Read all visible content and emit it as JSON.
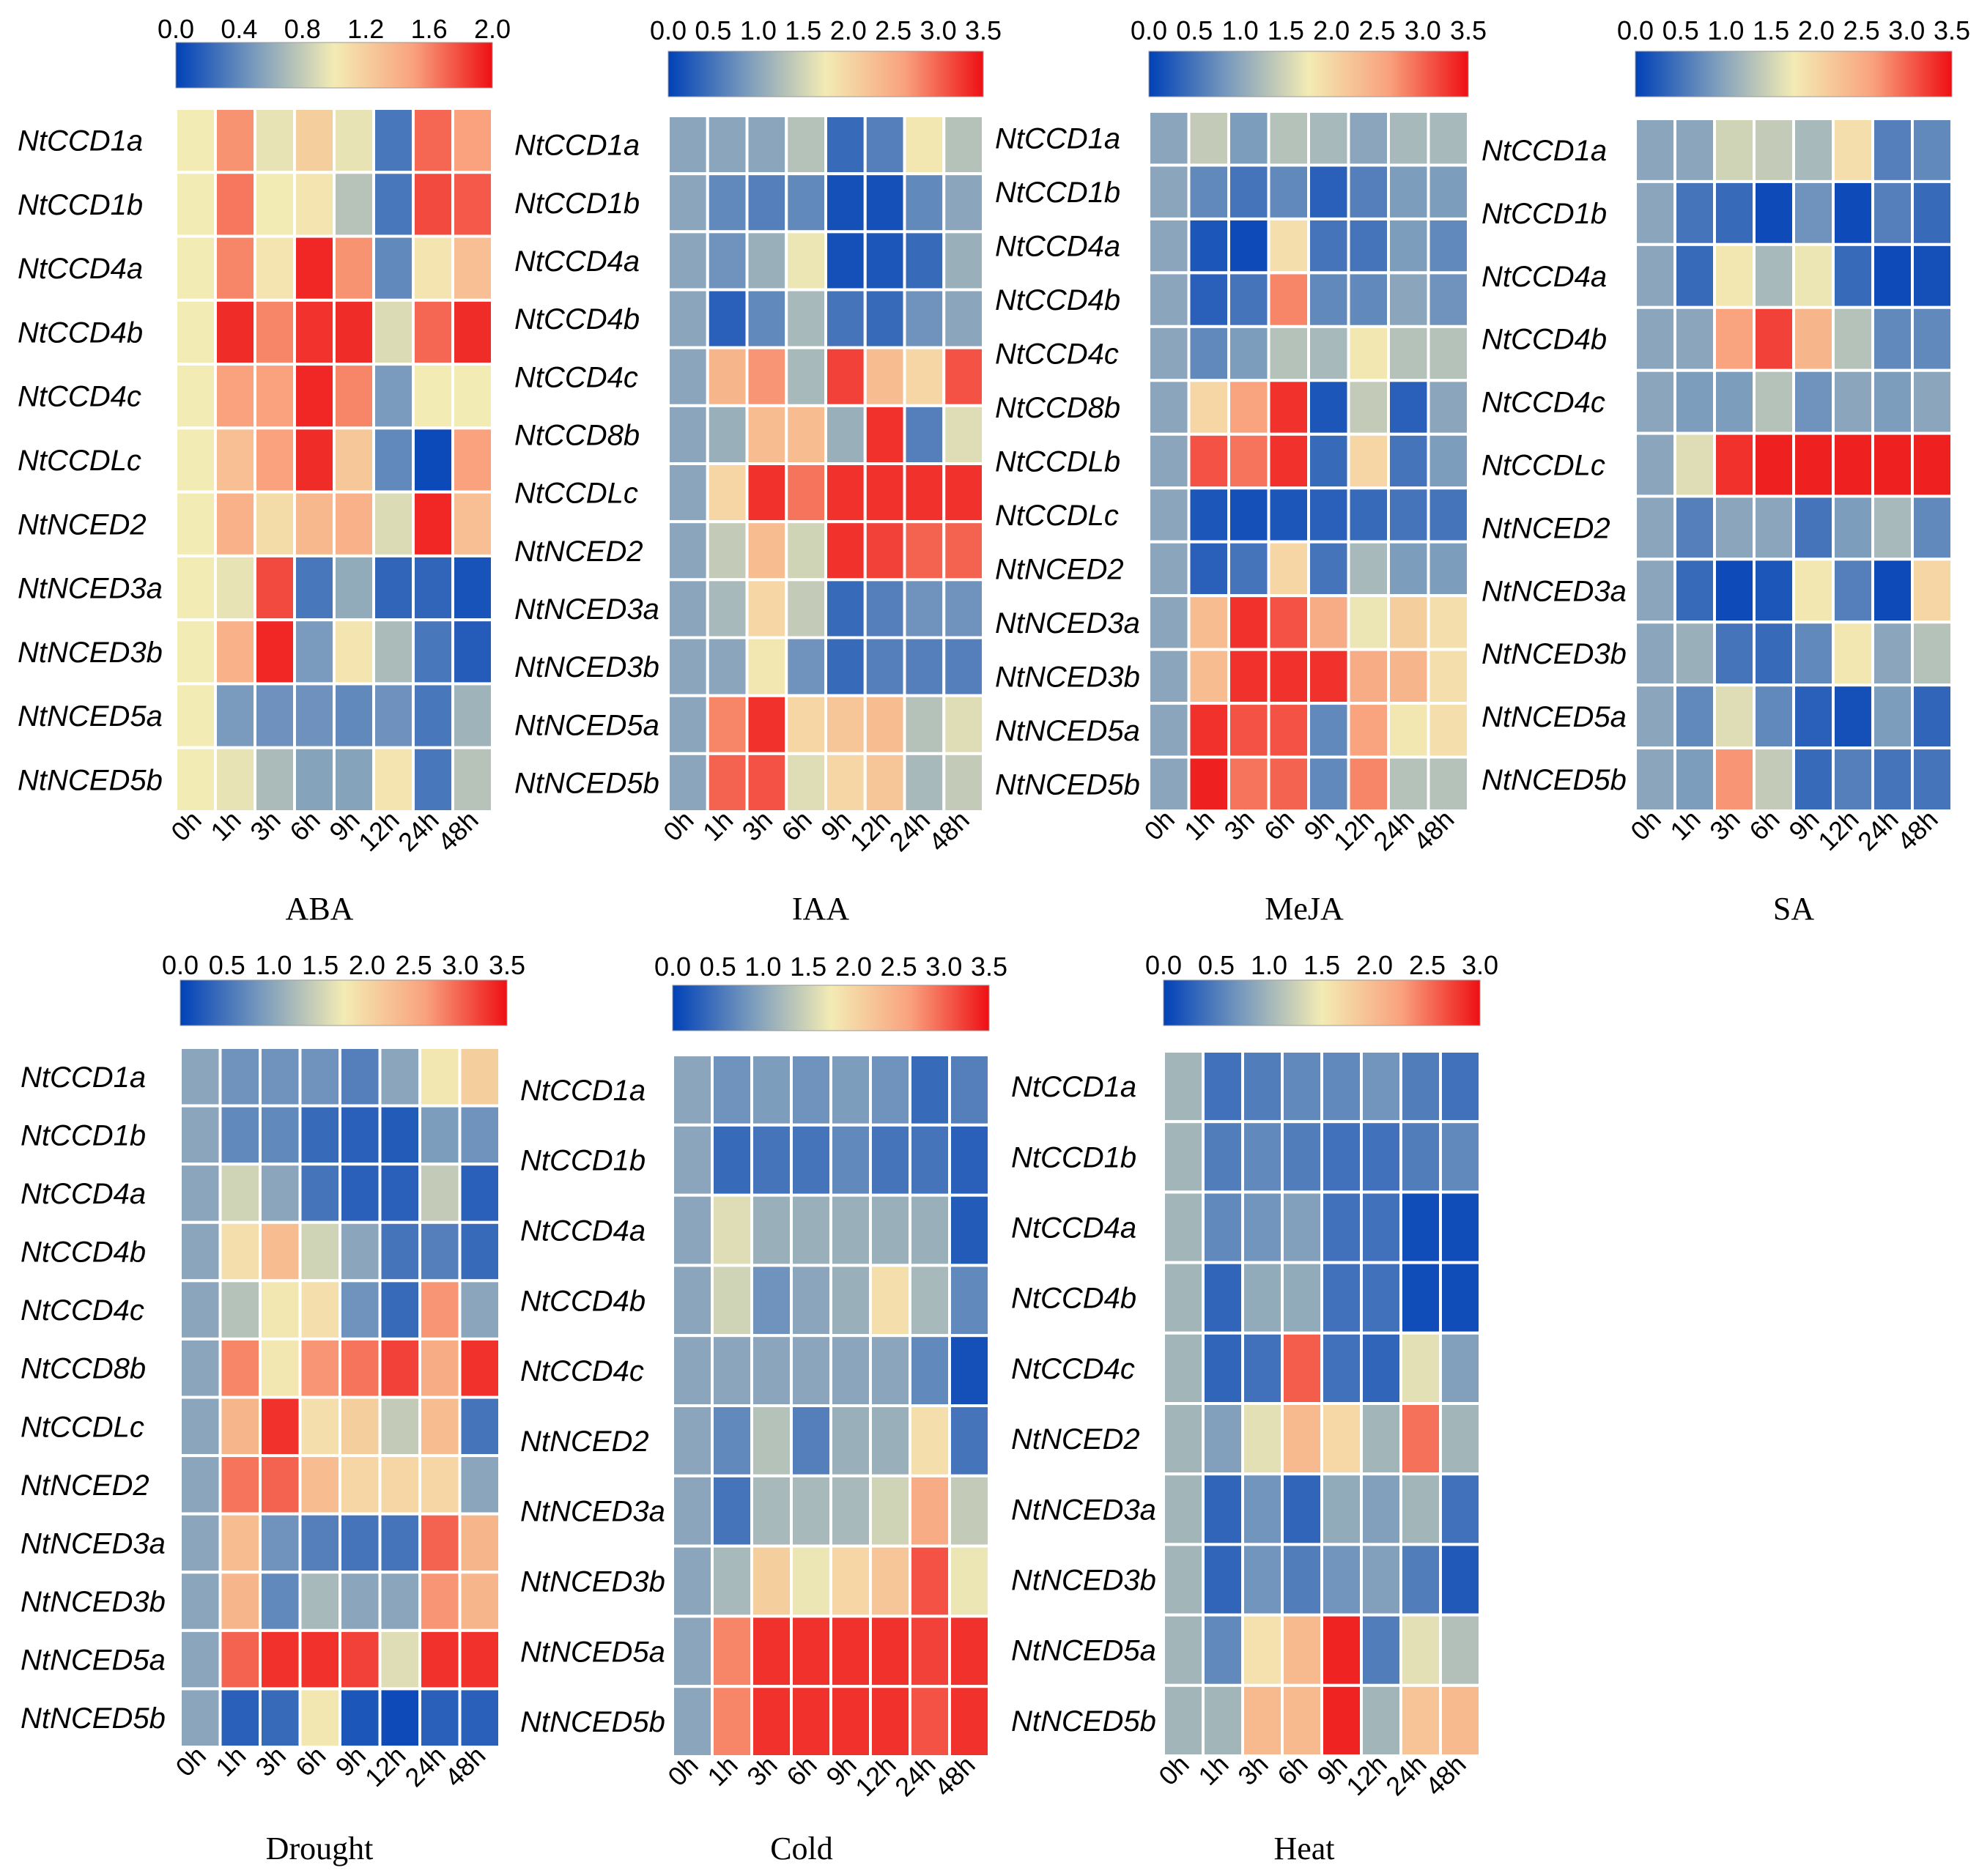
{
  "colors": {
    "stops": [
      "#0041b8",
      "#7a9bbd",
      "#f3ebb4",
      "#f9a27d",
      "#ee0f14"
    ],
    "grid": "#ffffff",
    "text": "#000000"
  },
  "chart_data": [
    {
      "type": "heatmap",
      "title": "ABA",
      "scale": {
        "min": 0,
        "max": 2.0,
        "ticks": [
          "0.0",
          "0.4",
          "0.8",
          "1.2",
          "1.6",
          "2.0"
        ]
      },
      "rows": [
        "NtCCD1a",
        "NtCCD1b",
        "NtCCD4a",
        "NtCCD4b",
        "NtCCD4c",
        "NtCCDLc",
        "NtNCED2",
        "NtNCED3a",
        "NtNCED3b",
        "NtNCED5a",
        "NtNCED5b"
      ],
      "columns": [
        "0h",
        "1h",
        "3h",
        "6h",
        "9h",
        "12h",
        "24h",
        "48h"
      ],
      "values": [
        [
          1.0,
          1.55,
          0.95,
          1.2,
          0.95,
          0.3,
          1.7,
          1.5
        ],
        [
          1.0,
          1.65,
          1.0,
          1.05,
          0.75,
          0.3,
          1.8,
          1.75
        ],
        [
          1.0,
          1.6,
          1.05,
          1.92,
          1.55,
          0.4,
          1.05,
          1.3
        ],
        [
          1.0,
          1.9,
          1.6,
          1.88,
          1.9,
          0.9,
          1.7,
          1.9
        ],
        [
          1.0,
          1.5,
          1.5,
          1.92,
          1.6,
          0.5,
          1.0,
          1.0
        ],
        [
          1.0,
          1.3,
          1.5,
          1.9,
          1.25,
          0.4,
          0.05,
          1.5
        ],
        [
          1.0,
          1.4,
          1.1,
          1.35,
          1.4,
          0.9,
          1.92,
          1.3
        ],
        [
          1.0,
          0.95,
          1.8,
          0.3,
          0.6,
          0.2,
          0.2,
          0.1
        ],
        [
          1.0,
          1.4,
          1.92,
          0.5,
          1.05,
          0.7,
          0.3,
          0.15
        ],
        [
          1.0,
          0.5,
          0.45,
          0.45,
          0.4,
          0.45,
          0.3,
          0.65
        ],
        [
          1.0,
          0.95,
          0.7,
          0.55,
          0.55,
          1.05,
          0.3,
          0.75
        ]
      ]
    },
    {
      "type": "heatmap",
      "title": "IAA",
      "scale": {
        "min": 0,
        "max": 3.5,
        "ticks": [
          "0.0",
          "0.5",
          "1.0",
          "1.5",
          "2.0",
          "2.5",
          "3.0",
          "3.5"
        ]
      },
      "rows": [
        "NtCCD1a",
        "NtCCD1b",
        "NtCCD4a",
        "NtCCD4b",
        "NtCCD4c",
        "NtCCD8b",
        "NtCCDLc",
        "NtNCED2",
        "NtNCED3a",
        "NtNCED3b",
        "NtNCED5a",
        "NtNCED5b"
      ],
      "columns": [
        "0h",
        "1h",
        "3h",
        "6h",
        "9h",
        "12h",
        "24h",
        "48h"
      ],
      "values": [
        [
          1.0,
          1.0,
          1.0,
          1.3,
          0.4,
          0.6,
          1.8,
          1.3
        ],
        [
          1.0,
          0.7,
          0.6,
          0.7,
          0.15,
          0.15,
          0.7,
          1.0
        ],
        [
          1.0,
          0.8,
          1.1,
          1.7,
          0.15,
          0.2,
          0.4,
          1.1
        ],
        [
          1.0,
          0.3,
          0.7,
          1.2,
          0.5,
          0.4,
          0.8,
          1.0
        ],
        [
          1.0,
          2.4,
          2.7,
          1.2,
          3.2,
          2.3,
          2.0,
          3.1
        ],
        [
          1.0,
          1.1,
          2.3,
          2.3,
          1.1,
          3.3,
          0.6,
          1.6
        ],
        [
          1.0,
          2.0,
          3.3,
          2.9,
          3.3,
          3.3,
          3.3,
          3.3
        ],
        [
          1.0,
          1.4,
          2.3,
          1.5,
          3.3,
          3.2,
          3.0,
          3.0
        ],
        [
          1.0,
          1.2,
          2.0,
          1.4,
          0.4,
          0.6,
          0.8,
          0.8
        ],
        [
          1.0,
          1.0,
          1.8,
          0.8,
          0.4,
          0.6,
          0.6,
          0.6
        ],
        [
          1.0,
          2.8,
          3.3,
          2.0,
          2.2,
          2.3,
          1.3,
          1.6
        ],
        [
          1.0,
          3.0,
          3.1,
          1.6,
          2.0,
          2.2,
          1.2,
          1.4
        ]
      ]
    },
    {
      "type": "heatmap",
      "title": "MeJA",
      "scale": {
        "min": 0,
        "max": 3.5,
        "ticks": [
          "0.0",
          "0.5",
          "1.0",
          "1.5",
          "2.0",
          "2.5",
          "3.0",
          "3.5"
        ]
      },
      "rows": [
        "NtCCD1a",
        "NtCCD1b",
        "NtCCD4a",
        "NtCCD4b",
        "NtCCD4c",
        "NtCCD8b",
        "NtCCDLb",
        "NtCCDLc",
        "NtNCED2",
        "NtNCED3a",
        "NtNCED3b",
        "NtNCED5a",
        "NtNCED5b"
      ],
      "columns": [
        "0h",
        "1h",
        "3h",
        "6h",
        "9h",
        "12h",
        "24h",
        "48h"
      ],
      "values": [
        [
          1.0,
          1.4,
          0.9,
          1.3,
          1.2,
          1.0,
          1.2,
          1.2
        ],
        [
          1.0,
          0.7,
          0.5,
          0.7,
          0.3,
          0.6,
          0.9,
          0.9
        ],
        [
          1.0,
          0.2,
          0.1,
          1.9,
          0.5,
          0.5,
          0.9,
          0.7
        ],
        [
          1.0,
          0.3,
          0.5,
          2.8,
          0.7,
          0.7,
          1.0,
          0.8
        ],
        [
          1.0,
          0.7,
          0.9,
          1.3,
          1.2,
          1.8,
          1.3,
          1.3
        ],
        [
          1.0,
          2.0,
          2.6,
          3.3,
          0.2,
          1.4,
          0.3,
          1.0
        ],
        [
          1.0,
          3.1,
          2.9,
          3.3,
          0.4,
          2.0,
          0.5,
          0.9
        ],
        [
          1.0,
          0.2,
          0.15,
          0.2,
          0.3,
          0.4,
          0.5,
          0.5
        ],
        [
          1.0,
          0.3,
          0.5,
          2.0,
          0.5,
          1.2,
          0.9,
          0.9
        ],
        [
          1.0,
          2.3,
          3.3,
          3.1,
          2.5,
          1.7,
          2.1,
          1.9
        ],
        [
          1.0,
          2.3,
          3.3,
          3.3,
          3.3,
          2.5,
          2.4,
          1.9
        ],
        [
          1.0,
          3.3,
          3.1,
          3.1,
          0.7,
          2.6,
          1.8,
          1.9
        ],
        [
          1.0,
          3.4,
          2.9,
          3.0,
          0.7,
          2.8,
          1.3,
          1.3
        ]
      ]
    },
    {
      "type": "heatmap",
      "title": "SA",
      "scale": {
        "min": 0,
        "max": 3.5,
        "ticks": [
          "0.0",
          "0.5",
          "1.0",
          "1.5",
          "2.0",
          "2.5",
          "3.0",
          "3.5"
        ]
      },
      "rows": [
        "NtCCD1a",
        "NtCCD1b",
        "NtCCD4a",
        "NtCCD4b",
        "NtCCD4c",
        "NtCCDLc",
        "NtNCED2",
        "NtNCED3a",
        "NtNCED3b",
        "NtNCED5a",
        "NtNCED5b"
      ],
      "columns": [
        "0h",
        "1h",
        "3h",
        "6h",
        "9h",
        "12h",
        "24h",
        "48h"
      ],
      "values": [
        [
          1.0,
          1.0,
          1.5,
          1.4,
          1.2,
          1.9,
          0.6,
          0.7
        ],
        [
          1.0,
          0.5,
          0.4,
          0.1,
          0.8,
          0.1,
          0.6,
          0.4
        ],
        [
          1.0,
          0.4,
          1.8,
          1.2,
          1.7,
          0.4,
          0.1,
          0.15
        ],
        [
          1.0,
          1.0,
          2.6,
          3.2,
          2.4,
          1.3,
          0.7,
          0.7
        ],
        [
          1.0,
          0.9,
          0.9,
          1.3,
          0.8,
          1.0,
          0.9,
          1.0
        ],
        [
          1.0,
          1.6,
          3.3,
          3.4,
          3.4,
          3.4,
          3.4,
          3.4
        ],
        [
          1.0,
          0.6,
          1.0,
          1.0,
          0.5,
          0.9,
          1.2,
          0.7
        ],
        [
          1.0,
          0.4,
          0.1,
          0.2,
          1.8,
          0.6,
          0.1,
          2.0
        ],
        [
          1.0,
          1.1,
          0.5,
          0.4,
          0.7,
          1.8,
          1.0,
          1.3
        ],
        [
          1.0,
          0.7,
          1.6,
          0.7,
          0.3,
          0.15,
          0.9,
          0.35
        ],
        [
          1.0,
          0.9,
          2.7,
          1.4,
          0.4,
          0.6,
          0.5,
          0.5
        ]
      ]
    },
    {
      "type": "heatmap",
      "title": "Drought",
      "scale": {
        "min": 0,
        "max": 3.5,
        "ticks": [
          "0.0",
          "0.5",
          "1.0",
          "1.5",
          "2.0",
          "2.5",
          "3.0",
          "3.5"
        ]
      },
      "rows": [
        "NtCCD1a",
        "NtCCD1b",
        "NtCCD4a",
        "NtCCD4b",
        "NtCCD4c",
        "NtCCD8b",
        "NtCCDLc",
        "NtNCED2",
        "NtNCED3a",
        "NtNCED3b",
        "NtNCED5a",
        "NtNCED5b"
      ],
      "columns": [
        "0h",
        "1h",
        "3h",
        "6h",
        "9h",
        "12h",
        "24h",
        "48h"
      ],
      "values": [
        [
          1.0,
          0.8,
          0.8,
          0.8,
          0.6,
          1.0,
          1.8,
          2.1
        ],
        [
          1.0,
          0.7,
          0.7,
          0.4,
          0.3,
          0.25,
          0.9,
          0.8
        ],
        [
          1.0,
          1.5,
          1.0,
          0.5,
          0.3,
          0.3,
          1.4,
          0.3
        ],
        [
          1.0,
          1.9,
          2.3,
          1.5,
          1.0,
          0.5,
          0.6,
          0.4
        ],
        [
          1.0,
          1.3,
          1.8,
          1.9,
          0.8,
          0.4,
          2.7,
          1.0
        ],
        [
          1.0,
          2.8,
          1.8,
          2.7,
          2.9,
          3.2,
          2.5,
          3.3
        ],
        [
          1.0,
          2.4,
          3.3,
          1.9,
          2.1,
          1.4,
          2.3,
          0.5
        ],
        [
          1.0,
          2.9,
          3.0,
          2.3,
          2.0,
          2.0,
          2.0,
          1.0
        ],
        [
          1.0,
          2.3,
          0.8,
          0.6,
          0.5,
          0.5,
          3.0,
          2.4
        ],
        [
          1.0,
          2.4,
          0.7,
          1.2,
          1.0,
          1.0,
          2.7,
          2.4
        ],
        [
          1.0,
          3.0,
          3.3,
          3.3,
          3.2,
          1.6,
          3.3,
          3.3
        ],
        [
          1.0,
          0.3,
          0.4,
          1.8,
          0.2,
          0.1,
          0.3,
          0.3
        ]
      ]
    },
    {
      "type": "heatmap",
      "title": "Cold",
      "scale": {
        "min": 0,
        "max": 3.5,
        "ticks": [
          "0.0",
          "0.5",
          "1.0",
          "1.5",
          "2.0",
          "2.5",
          "3.0",
          "3.5"
        ]
      },
      "rows": [
        "NtCCD1a",
        "NtCCD1b",
        "NtCCD4a",
        "NtCCD4b",
        "NtCCD4c",
        "NtNCED2",
        "NtNCED3a",
        "NtNCED3b",
        "NtNCED5a",
        "NtNCED5b"
      ],
      "columns": [
        "0h",
        "1h",
        "3h",
        "6h",
        "9h",
        "12h",
        "24h",
        "48h"
      ],
      "values": [
        [
          1.0,
          0.8,
          0.9,
          0.8,
          0.9,
          0.8,
          0.4,
          0.6
        ],
        [
          1.0,
          0.4,
          0.5,
          0.5,
          0.7,
          0.5,
          0.5,
          0.3
        ],
        [
          1.0,
          1.6,
          1.1,
          1.1,
          1.1,
          1.1,
          1.1,
          0.25
        ],
        [
          1.0,
          1.5,
          0.8,
          1.0,
          1.1,
          1.9,
          1.2,
          0.7
        ],
        [
          1.0,
          1.0,
          1.0,
          1.0,
          1.0,
          1.0,
          0.7,
          0.15
        ],
        [
          1.0,
          0.7,
          1.3,
          0.6,
          1.1,
          1.1,
          1.9,
          0.5
        ],
        [
          1.0,
          0.5,
          1.2,
          1.2,
          1.2,
          1.5,
          2.5,
          1.4
        ],
        [
          1.0,
          1.2,
          2.1,
          1.7,
          2.0,
          2.2,
          3.1,
          1.7
        ],
        [
          1.0,
          2.8,
          3.3,
          3.3,
          3.3,
          3.3,
          3.2,
          3.3
        ],
        [
          1.0,
          2.8,
          3.3,
          3.3,
          3.3,
          3.3,
          3.1,
          3.3
        ]
      ]
    },
    {
      "type": "heatmap",
      "title": "Heat",
      "scale": {
        "min": 0,
        "max": 3.0,
        "ticks": [
          "0.0",
          "0.5",
          "1.0",
          "1.5",
          "2.0",
          "2.5",
          "3.0"
        ]
      },
      "rows": [
        "NtCCD1a",
        "NtCCD1b",
        "NtCCD4a",
        "NtCCD4b",
        "NtCCD4c",
        "NtNCED2",
        "NtNCED3a",
        "NtNCED3b",
        "NtNCED5a",
        "NtNCED5b"
      ],
      "columns": [
        "0h",
        "1h",
        "3h",
        "6h",
        "9h",
        "12h",
        "24h",
        "48h"
      ],
      "values": [
        [
          1.0,
          0.4,
          0.5,
          0.6,
          0.6,
          0.7,
          0.5,
          0.4
        ],
        [
          1.0,
          0.5,
          0.6,
          0.5,
          0.4,
          0.4,
          0.5,
          0.6
        ],
        [
          1.0,
          0.6,
          0.7,
          0.8,
          0.4,
          0.4,
          0.1,
          0.1
        ],
        [
          1.0,
          0.3,
          0.9,
          0.9,
          0.4,
          0.4,
          0.1,
          0.1
        ],
        [
          1.0,
          0.3,
          0.4,
          2.6,
          0.4,
          0.3,
          1.4,
          0.8
        ],
        [
          1.0,
          0.8,
          1.4,
          2.0,
          1.7,
          1.0,
          2.5,
          1.0
        ],
        [
          1.0,
          0.3,
          0.7,
          0.3,
          0.9,
          0.8,
          1.0,
          0.4
        ],
        [
          1.0,
          0.3,
          0.7,
          0.5,
          0.7,
          0.8,
          0.5,
          0.2
        ],
        [
          1.0,
          0.6,
          1.6,
          2.0,
          2.9,
          0.5,
          1.4,
          1.1
        ],
        [
          1.0,
          1.0,
          2.0,
          2.0,
          2.9,
          1.0,
          1.9,
          2.0
        ]
      ]
    }
  ]
}
